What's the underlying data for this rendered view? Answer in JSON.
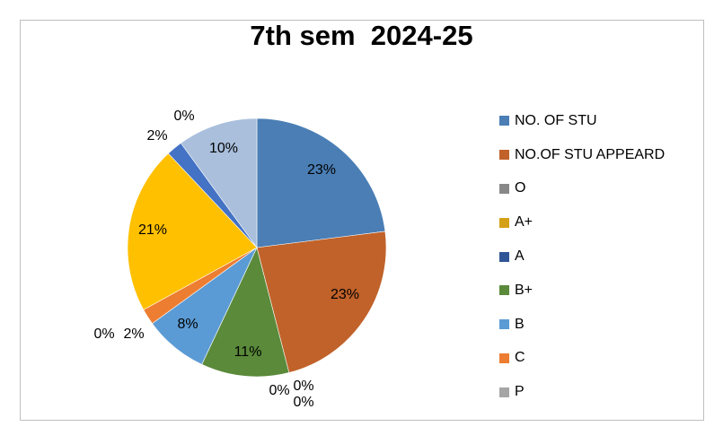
{
  "chart_data": {
    "type": "pie",
    "title": "7th sem  2024-25",
    "legend_position": "right",
    "categories": [
      "NO. OF STU",
      "NO.OF STU APPEARD",
      "O",
      "A+",
      "A",
      "B+",
      "B",
      "C",
      "P"
    ],
    "slices": [
      {
        "name": "NO. OF STU",
        "value": 23,
        "color": "#4a7eb5"
      },
      {
        "name": "NO.OF STU APPEARD",
        "value": 23,
        "color": "#c0622a"
      },
      {
        "name": "",
        "value": 0,
        "color": "#888888"
      },
      {
        "name": "",
        "value": 0,
        "color": "#888888"
      },
      {
        "name": "B+",
        "value": 11,
        "color": "#5a8a3a"
      },
      {
        "name": "",
        "value": 0,
        "color": "#888888"
      },
      {
        "name": "B",
        "value": 8,
        "color": "#5b9bd5"
      },
      {
        "name": "C",
        "value": 2,
        "color": "#ed7d31"
      },
      {
        "name": "",
        "value": 0,
        "color": "#a5a5a5"
      },
      {
        "name": "A+",
        "value": 21,
        "color": "#ffc000"
      },
      {
        "name": "A",
        "value": 2,
        "color": "#4472c4"
      },
      {
        "name": "",
        "value": 0,
        "color": "#888888"
      },
      {
        "name": "",
        "value": 10,
        "color": "#a9bfdc"
      }
    ],
    "data_labels": [
      "23%",
      "23%",
      "0%",
      "0%",
      "11%",
      "0%",
      "8%",
      "2%",
      "0%",
      "21%",
      "2%",
      "0%",
      "10%"
    ],
    "legend": [
      {
        "label": "NO. OF STU",
        "color": "#4a7eb5"
      },
      {
        "label": "NO.OF STU APPEARD",
        "color": "#c0622a"
      },
      {
        "label": "O",
        "color": "#888888"
      },
      {
        "label": "A+",
        "color": "#d4a017"
      },
      {
        "label": "A",
        "color": "#2f5597"
      },
      {
        "label": "B+",
        "color": "#5a8a3a"
      },
      {
        "label": "B",
        "color": "#5b9bd5"
      },
      {
        "label": "C",
        "color": "#ed7d31"
      },
      {
        "label": "P",
        "color": "#a5a5a5"
      }
    ]
  }
}
